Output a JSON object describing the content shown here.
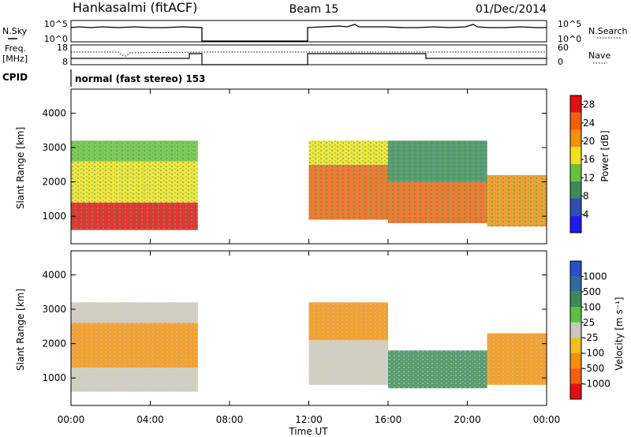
{
  "header": {
    "station": "Hankasalmi (fitACF)",
    "beam": "Beam 15",
    "date": "01/Dec/2014"
  },
  "strip_labels": {
    "nsky": "N.Sky",
    "nsearch": "N.Search",
    "freq_line1": "Freq.",
    "freq_line2": "[MHz]",
    "nave": "Nave",
    "cpid": "CPID",
    "nsky_ticks": [
      "10^5",
      "10^0"
    ],
    "nsearch_ticks": [
      "10^5",
      "10^0"
    ],
    "freq_ticks": [
      "18",
      "8"
    ],
    "nave_ticks": [
      "60",
      "0"
    ],
    "cpid_text": "normal (fast stereo) 153"
  },
  "chart_data": [
    {
      "type": "heatmap",
      "name": "power",
      "xlabel": "Time UT",
      "ylabel": "Slant Range [km]",
      "xticks": [
        "00:00",
        "04:00",
        "08:00",
        "12:00",
        "16:00",
        "20:00",
        "00:00"
      ],
      "xlim": [
        0,
        24
      ],
      "yticks": [
        1000,
        2000,
        3000,
        4000
      ],
      "ylim": [
        200,
        4700
      ],
      "colorbar": {
        "label": "Power [dB]",
        "ticks": [
          4,
          8,
          12,
          16,
          20,
          24,
          28
        ],
        "range": [
          0,
          30
        ],
        "colors": [
          "#1a1af0",
          "#2f4fb0",
          "#3c8a5c",
          "#68c040",
          "#f0e020",
          "#f09010",
          "#f06010",
          "#e01010"
        ]
      },
      "data_gaps_hours": [
        [
          6.5,
          12.0
        ]
      ],
      "regions": [
        {
          "t": [
            0.0,
            6.4
          ],
          "range": [
            600,
            1400
          ],
          "level_db": 28
        },
        {
          "t": [
            0.0,
            6.4
          ],
          "range": [
            1400,
            2600
          ],
          "level_db": 18
        },
        {
          "t": [
            0.0,
            6.4
          ],
          "range": [
            2600,
            3200
          ],
          "level_db": 12
        },
        {
          "t": [
            12.0,
            16.0
          ],
          "range": [
            900,
            2500
          ],
          "level_db": 24
        },
        {
          "t": [
            12.0,
            16.0
          ],
          "range": [
            2500,
            3200
          ],
          "level_db": 16
        },
        {
          "t": [
            16.0,
            21.0
          ],
          "range": [
            800,
            2000
          ],
          "level_db": 26
        },
        {
          "t": [
            16.0,
            21.0
          ],
          "range": [
            2000,
            3200
          ],
          "level_db": 10
        },
        {
          "t": [
            21.0,
            24.0
          ],
          "range": [
            700,
            2200
          ],
          "level_db": 20
        }
      ]
    },
    {
      "type": "heatmap",
      "name": "velocity",
      "xlabel": "Time UT",
      "ylabel": "Slant Range [km]",
      "xticks": [
        "00:00",
        "04:00",
        "08:00",
        "12:00",
        "16:00",
        "20:00",
        "00:00"
      ],
      "xlim": [
        0,
        24
      ],
      "yticks": [
        1000,
        2000,
        3000,
        4000
      ],
      "ylim": [
        200,
        4700
      ],
      "colorbar": {
        "label": "Velocity [m s⁻¹]",
        "ticks": [
          1000,
          500,
          100,
          25,
          -25,
          -100,
          -500,
          -1000
        ],
        "colors": [
          "#2850c8",
          "#2e6c9c",
          "#3a8a5a",
          "#5cc040",
          "#c8c8c0",
          "#f0c020",
          "#f09010",
          "#f06010",
          "#e01010"
        ]
      },
      "data_gaps_hours": [
        [
          6.5,
          12.0
        ]
      ],
      "regions": [
        {
          "t": [
            0.0,
            6.4
          ],
          "range": [
            600,
            1300
          ],
          "velocity": 0
        },
        {
          "t": [
            0.0,
            6.4
          ],
          "range": [
            1300,
            2600
          ],
          "velocity": -250
        },
        {
          "t": [
            0.0,
            6.4
          ],
          "range": [
            2600,
            3200
          ],
          "velocity": 0
        },
        {
          "t": [
            12.0,
            16.0
          ],
          "range": [
            800,
            2100
          ],
          "velocity": 0
        },
        {
          "t": [
            12.0,
            16.0
          ],
          "range": [
            2100,
            3200
          ],
          "velocity": -250
        },
        {
          "t": [
            16.0,
            21.0
          ],
          "range": [
            700,
            1800
          ],
          "velocity": 300
        },
        {
          "t": [
            21.0,
            24.0
          ],
          "range": [
            800,
            2300
          ],
          "velocity": -400
        }
      ]
    }
  ]
}
